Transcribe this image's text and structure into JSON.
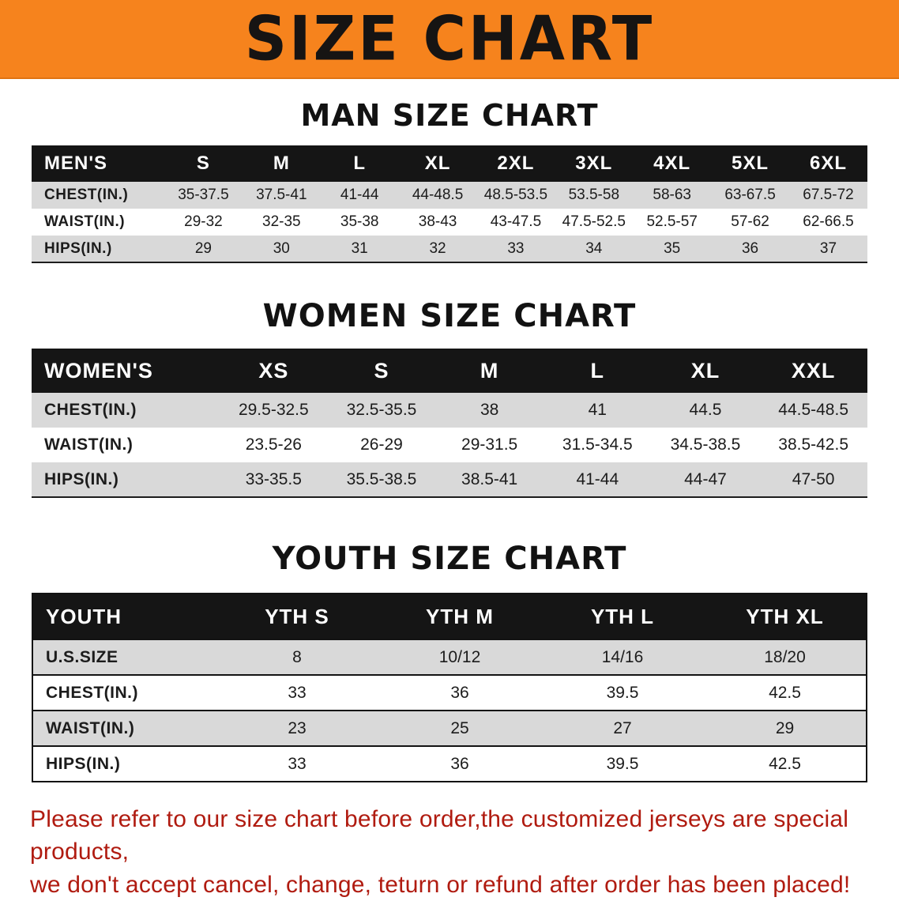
{
  "banner": {
    "title": "SIZE CHART"
  },
  "colors": {
    "banner_bg": "#F6831D",
    "header_bar": "#151515",
    "stripe_gray": "#D9D9D9",
    "footer_text": "#B01B10"
  },
  "sections": [
    {
      "heading": "MAN SIZE CHART",
      "table": {
        "header": [
          "MEN'S",
          "S",
          "M",
          "L",
          "XL",
          "2XL",
          "3XL",
          "4XL",
          "5XL",
          "6XL"
        ],
        "rows": [
          {
            "label": "CHEST(IN.)",
            "values": [
              "35-37.5",
              "37.5-41",
              "41-44",
              "44-48.5",
              "48.5-53.5",
              "53.5-58",
              "58-63",
              "63-67.5",
              "67.5-72"
            ]
          },
          {
            "label": "WAIST(IN.)",
            "values": [
              "29-32",
              "32-35",
              "35-38",
              "38-43",
              "43-47.5",
              "47.5-52.5",
              "52.5-57",
              "57-62",
              "62-66.5"
            ]
          },
          {
            "label": "HIPS(IN.)",
            "values": [
              "29",
              "30",
              "31",
              "32",
              "33",
              "34",
              "35",
              "36",
              "37"
            ]
          }
        ]
      }
    },
    {
      "heading": "WOMEN SIZE CHART",
      "table": {
        "header": [
          "WOMEN'S",
          "XS",
          "S",
          "M",
          "L",
          "XL",
          "XXL"
        ],
        "rows": [
          {
            "label": "CHEST(IN.)",
            "values": [
              "29.5-32.5",
              "32.5-35.5",
              "38",
              "41",
              "44.5",
              "44.5-48.5"
            ]
          },
          {
            "label": "WAIST(IN.)",
            "values": [
              "23.5-26",
              "26-29",
              "29-31.5",
              "31.5-34.5",
              "34.5-38.5",
              "38.5-42.5"
            ]
          },
          {
            "label": "HIPS(IN.)",
            "values": [
              "33-35.5",
              "35.5-38.5",
              "38.5-41",
              "41-44",
              "44-47",
              "47-50"
            ]
          }
        ]
      }
    },
    {
      "heading": "YOUTH SIZE CHART",
      "table": {
        "header": [
          "YOUTH",
          "YTH S",
          "YTH M",
          "YTH L",
          "YTH XL"
        ],
        "rows": [
          {
            "label": "U.S.SIZE",
            "values": [
              "8",
              "10/12",
              "14/16",
              "18/20"
            ]
          },
          {
            "label": "CHEST(IN.)",
            "values": [
              "33",
              "36",
              "39.5",
              "42.5"
            ]
          },
          {
            "label": "WAIST(IN.)",
            "values": [
              "23",
              "25",
              "27",
              "29"
            ]
          },
          {
            "label": "HIPS(IN.)",
            "values": [
              "33",
              "36",
              "39.5",
              "42.5"
            ]
          }
        ]
      }
    }
  ],
  "footer": {
    "line1": "Please refer to our size chart before order,the customized jerseys are special products,",
    "line2": "we don't accept cancel, change, teturn or refund after order has been placed!"
  }
}
